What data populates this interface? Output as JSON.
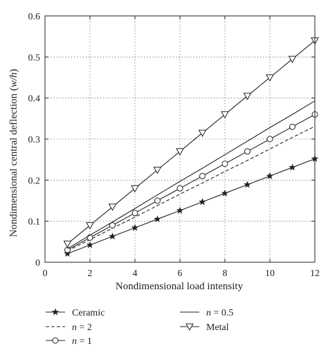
{
  "chart_data": {
    "type": "line",
    "xlabel": "Nondimensional load intensity",
    "ylabel": "Nondimensional central deflection (w/h)",
    "ylabel_parts": {
      "main": "Nondimensional central deflection (",
      "var": "w/h",
      "close": ")"
    },
    "xlim": [
      0,
      12
    ],
    "ylim": [
      0,
      0.6
    ],
    "grid": true,
    "legend_position": "below",
    "x_ticks": [
      "0",
      "2",
      "4",
      "6",
      "8",
      "10",
      "12"
    ],
    "y_ticks": [
      "0",
      "0.1",
      "0.2",
      "0.3",
      "0.4",
      "0.5",
      "0.6"
    ],
    "x": [
      1,
      2,
      3,
      4,
      5,
      6,
      7,
      8,
      9,
      10,
      11,
      12
    ],
    "series": [
      {
        "key": "ceramic",
        "name": "Ceramic",
        "var": "",
        "op": "",
        "value": "",
        "style": "solid",
        "marker": "star",
        "values": [
          0.021,
          0.042,
          0.063,
          0.084,
          0.105,
          0.126,
          0.147,
          0.168,
          0.189,
          0.21,
          0.231,
          0.252
        ]
      },
      {
        "key": "n2",
        "name": "n = 2",
        "var": "n",
        "op": " = ",
        "value": "2",
        "style": "dashed",
        "marker": "none",
        "values": [
          0.028,
          0.055,
          0.083,
          0.11,
          0.138,
          0.166,
          0.193,
          0.221,
          0.248,
          0.276,
          0.304,
          0.331
        ]
      },
      {
        "key": "n1",
        "name": "n = 1",
        "var": "n",
        "op": " = ",
        "value": "1",
        "style": "solid",
        "marker": "circle",
        "values": [
          0.03,
          0.06,
          0.09,
          0.12,
          0.15,
          0.18,
          0.21,
          0.24,
          0.27,
          0.3,
          0.33,
          0.36
        ]
      },
      {
        "key": "n05",
        "name": "n = 0.5",
        "var": "n",
        "op": " = ",
        "value": "0.5",
        "style": "solid",
        "marker": "none",
        "values": [
          0.033,
          0.066,
          0.098,
          0.131,
          0.164,
          0.197,
          0.229,
          0.262,
          0.295,
          0.328,
          0.36,
          0.393
        ]
      },
      {
        "key": "metal",
        "name": "Metal",
        "var": "",
        "op": "",
        "value": "",
        "style": "solid",
        "marker": "triangle-down",
        "values": [
          0.045,
          0.09,
          0.135,
          0.18,
          0.225,
          0.27,
          0.315,
          0.36,
          0.405,
          0.45,
          0.495,
          0.54
        ]
      }
    ]
  }
}
